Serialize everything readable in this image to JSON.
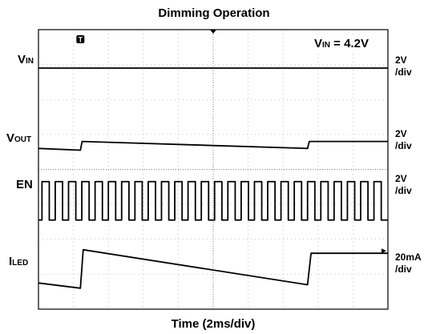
{
  "chart_data": {
    "type": "line",
    "title": "Dimming Operation",
    "xlabel": "Time (2ms/div)",
    "annotation": {
      "prefix": "V",
      "sub": "IN",
      "text": " = 4.2V"
    },
    "x_divisions": 10,
    "y_divisions": 8,
    "channels": [
      {
        "name": "VIN",
        "label_main": "V",
        "label_sub": "IN",
        "scale_line1": "2V",
        "scale_line2": "/div",
        "ref_div": 1.1,
        "points": [
          [
            0,
            0
          ],
          [
            10,
            0
          ]
        ]
      },
      {
        "name": "VOUT",
        "label_main": "V",
        "label_sub": "OUT",
        "scale_line1": "2V",
        "scale_line2": "/div",
        "ref_div": 3.4,
        "points": [
          [
            0,
            0
          ],
          [
            1.2,
            -0.05
          ],
          [
            1.25,
            0.2
          ],
          [
            7.7,
            0.0
          ],
          [
            7.75,
            0.2
          ],
          [
            10,
            0.2
          ]
        ]
      },
      {
        "name": "EN",
        "label_main": "EN",
        "label_sub": "",
        "scale_line1": "2V",
        "scale_line2": "/div",
        "ref_div": 4.9,
        "square_wave": {
          "period_div": 0.38,
          "duty": 0.55,
          "start_div": 0.1,
          "end_div": 9.85,
          "amplitude_div": 1.1
        }
      },
      {
        "name": "ILED",
        "label_main": "I",
        "label_sub": "LED",
        "scale_line1": "20mA",
        "scale_line2": "/div",
        "ref_div": 7.25,
        "points": [
          [
            0,
            0
          ],
          [
            1.2,
            -0.15
          ],
          [
            1.28,
            0.95
          ],
          [
            7.7,
            -0.05
          ],
          [
            7.8,
            0.85
          ],
          [
            10,
            0.85
          ]
        ]
      }
    ],
    "trigger_marker": "T",
    "grid": true
  }
}
